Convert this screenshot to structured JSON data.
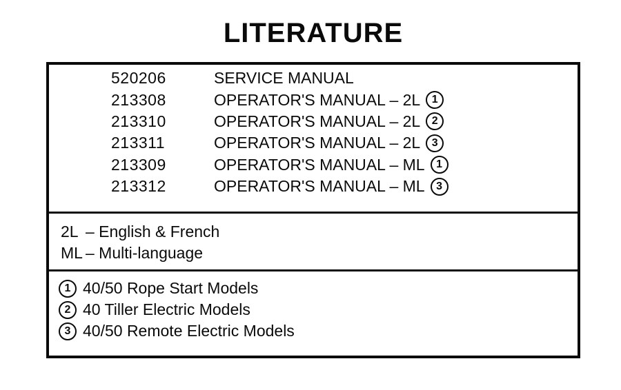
{
  "page": {
    "title": "LITERATURE"
  },
  "colors": {
    "ink": "#0a0a0a",
    "paper": "#ffffff"
  },
  "literature": {
    "items": [
      {
        "part_number": "520206",
        "description": "SERVICE MANUAL",
        "badge": ""
      },
      {
        "part_number": "213308",
        "description": "OPERATOR'S MANUAL – 2L",
        "badge": "1"
      },
      {
        "part_number": "213310",
        "description": "OPERATOR'S MANUAL – 2L",
        "badge": "2"
      },
      {
        "part_number": "213311",
        "description": "OPERATOR'S MANUAL – 2L",
        "badge": "3"
      },
      {
        "part_number": "213309",
        "description": "OPERATOR'S MANUAL – ML",
        "badge": "1"
      },
      {
        "part_number": "213312",
        "description": "OPERATOR'S MANUAL – ML",
        "badge": "3"
      }
    ],
    "language_legend": [
      {
        "abbr": "2L",
        "meaning": "– English & French"
      },
      {
        "abbr": "ML",
        "meaning": "– Multi-language"
      }
    ],
    "model_legend": [
      {
        "badge": "1",
        "text": "40/50 Rope Start Models"
      },
      {
        "badge": "2",
        "text": "40 Tiller Electric Models"
      },
      {
        "badge": "3",
        "text": "40/50 Remote Electric Models"
      }
    ]
  }
}
